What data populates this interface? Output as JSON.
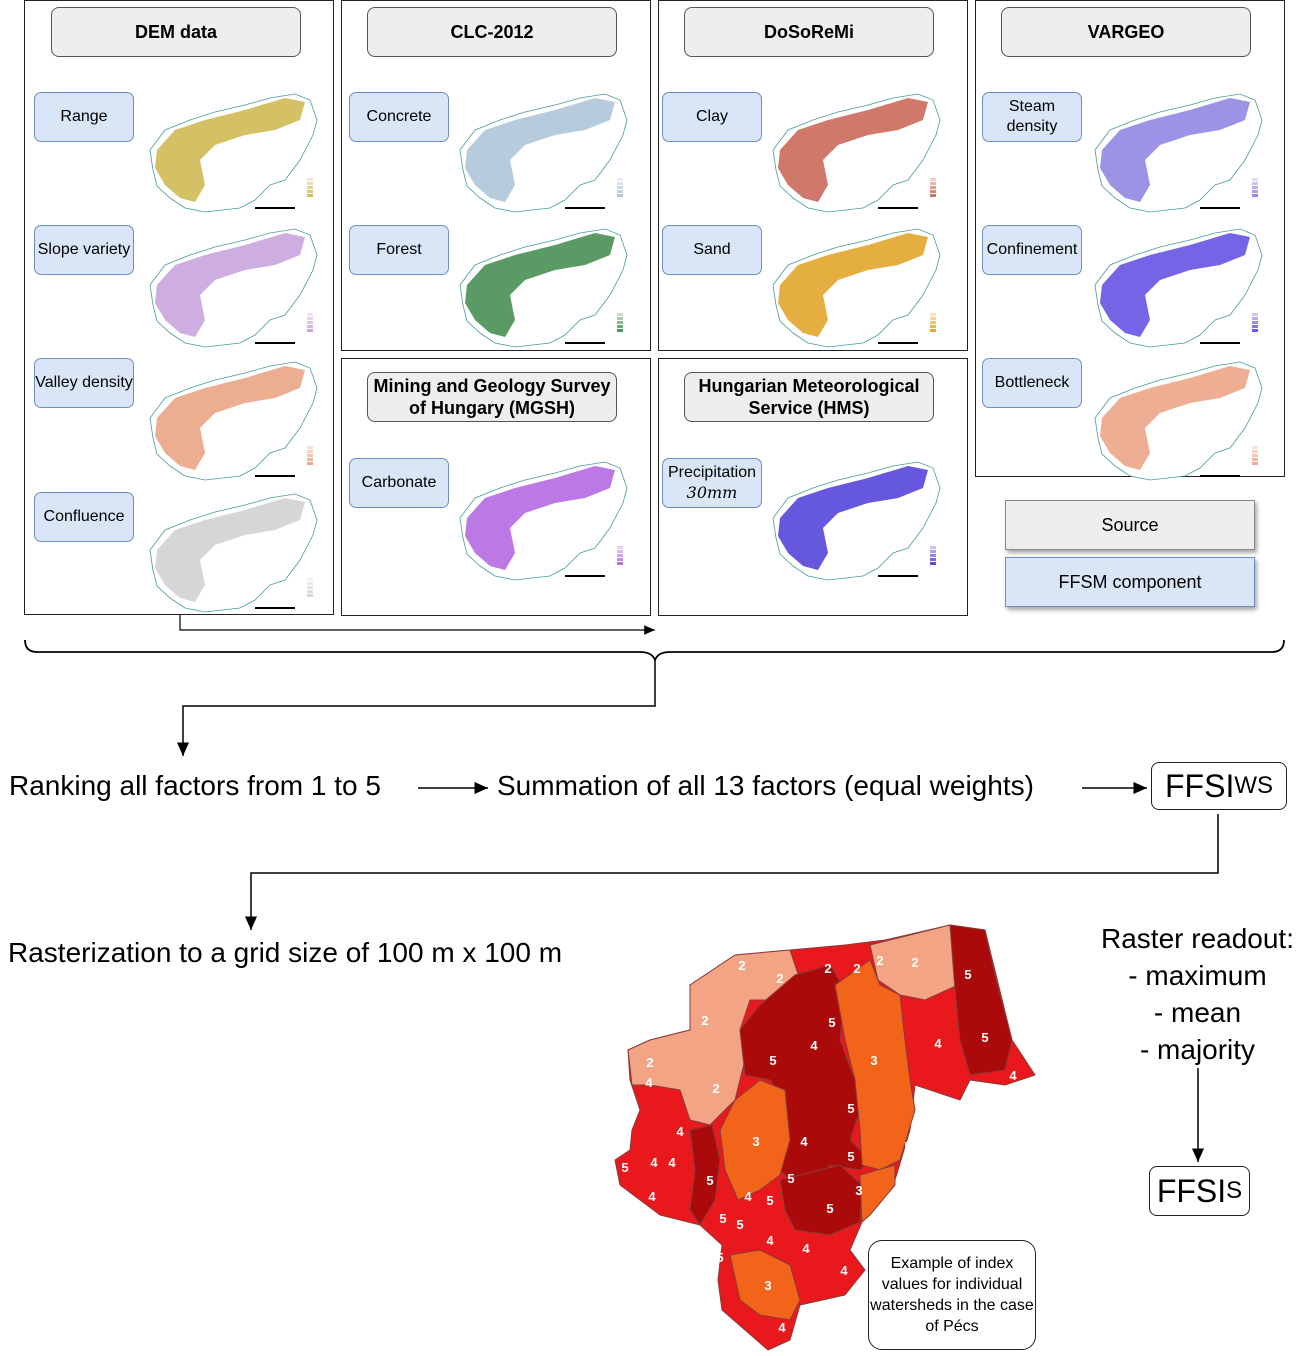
{
  "sources": {
    "dem": {
      "title": "DEM data",
      "components": [
        "Range",
        "Slope variety",
        "Valley density",
        "Confluence"
      ]
    },
    "clc": {
      "title": "CLC-2012",
      "components": [
        "Concrete",
        "Forest"
      ]
    },
    "dosoremi": {
      "title": "DoSoReMi",
      "components": [
        "Clay",
        "Sand"
      ]
    },
    "vargeo": {
      "title": "VARGEO",
      "components": [
        "Steam density",
        "Confinement",
        "Bottleneck"
      ]
    },
    "mgsh": {
      "title": "Mining and Geology Survey of Hungary (MGSH)",
      "components": [
        "Carbonate"
      ]
    },
    "hms": {
      "title": "Hungarian Meteorological Service (HMS)",
      "components": [
        "Precipitation"
      ],
      "precip_value": "30mm"
    }
  },
  "legend": {
    "source": "Source",
    "component": "FFSM component"
  },
  "flow": {
    "step1": "Ranking all factors from 1 to 5",
    "step2": "Summation of all 13 factors (equal weights)",
    "ffsi_ws_main": "FFSI",
    "ffsi_ws_sub": "WS",
    "step3": "Rasterization to a grid size of 100 m x 100 m",
    "readout_title": "Raster readout:",
    "readout_items": [
      "- maximum",
      "- mean",
      "- majority"
    ],
    "ffsi_s_main": "FFSI",
    "ffsi_s_sub": "S"
  },
  "callout": "Example of index values for individual watersheds in the case of Pécs",
  "colors": {
    "component_fill": "#d9e6f8",
    "source_fill": "#eeeeee",
    "rank2": "#f2a484",
    "rank3": "#f26419",
    "rank4": "#e8181c",
    "rank5": "#aa0a0a"
  },
  "map_palettes": {
    "range": "#cdb64b",
    "slope": "#c5a0dc",
    "valley": "#e8a07c",
    "confluence": "#cfcfcf",
    "concrete": "#a9c2d6",
    "forest": "#3d8a4a",
    "clay": "#c86050",
    "sand": "#e0a020",
    "steam": "#8a80e0",
    "confinement": "#5a4ae0",
    "bottleneck": "#eaa080",
    "carbonate": "#b060e0",
    "precipitation": "#4a3ad8"
  },
  "watershed_labels": [
    {
      "v": "2",
      "x": 742,
      "y": 965
    },
    {
      "v": "2",
      "x": 650,
      "y": 1062
    },
    {
      "v": "2",
      "x": 705,
      "y": 1020
    },
    {
      "v": "2",
      "x": 716,
      "y": 1088
    },
    {
      "v": "2",
      "x": 780,
      "y": 978
    },
    {
      "v": "2",
      "x": 828,
      "y": 968
    },
    {
      "v": "2",
      "x": 857,
      "y": 968
    },
    {
      "v": "2",
      "x": 880,
      "y": 960
    },
    {
      "v": "2",
      "x": 915,
      "y": 962
    },
    {
      "v": "4",
      "x": 700,
      "y": 958
    },
    {
      "v": "5",
      "x": 773,
      "y": 1060
    },
    {
      "v": "4",
      "x": 814,
      "y": 1045
    },
    {
      "v": "5",
      "x": 832,
      "y": 1022
    },
    {
      "v": "3",
      "x": 874,
      "y": 1060
    },
    {
      "v": "4",
      "x": 938,
      "y": 1043
    },
    {
      "v": "5",
      "x": 968,
      "y": 974
    },
    {
      "v": "5",
      "x": 985,
      "y": 1037
    },
    {
      "v": "4",
      "x": 1013,
      "y": 1075
    },
    {
      "v": "4",
      "x": 649,
      "y": 1082
    },
    {
      "v": "4",
      "x": 680,
      "y": 1131
    },
    {
      "v": "5",
      "x": 625,
      "y": 1167
    },
    {
      "v": "4",
      "x": 654,
      "y": 1162
    },
    {
      "v": "4",
      "x": 672,
      "y": 1162
    },
    {
      "v": "3",
      "x": 756,
      "y": 1141
    },
    {
      "v": "4",
      "x": 804,
      "y": 1141
    },
    {
      "v": "5",
      "x": 851,
      "y": 1108
    },
    {
      "v": "5",
      "x": 851,
      "y": 1156
    },
    {
      "v": "5",
      "x": 710,
      "y": 1180
    },
    {
      "v": "5",
      "x": 791,
      "y": 1178
    },
    {
      "v": "4",
      "x": 748,
      "y": 1196
    },
    {
      "v": "5",
      "x": 770,
      "y": 1200
    },
    {
      "v": "5",
      "x": 830,
      "y": 1208
    },
    {
      "v": "3",
      "x": 859,
      "y": 1190
    },
    {
      "v": "5",
      "x": 908,
      "y": 1146
    },
    {
      "v": "5",
      "x": 723,
      "y": 1218
    },
    {
      "v": "5",
      "x": 740,
      "y": 1224
    },
    {
      "v": "4",
      "x": 770,
      "y": 1240
    },
    {
      "v": "4",
      "x": 806,
      "y": 1248
    },
    {
      "v": "4",
      "x": 844,
      "y": 1270
    },
    {
      "v": "3",
      "x": 768,
      "y": 1285
    },
    {
      "v": "4",
      "x": 782,
      "y": 1327
    },
    {
      "v": "5",
      "x": 720,
      "y": 1257
    },
    {
      "v": "4",
      "x": 652,
      "y": 1196
    }
  ]
}
